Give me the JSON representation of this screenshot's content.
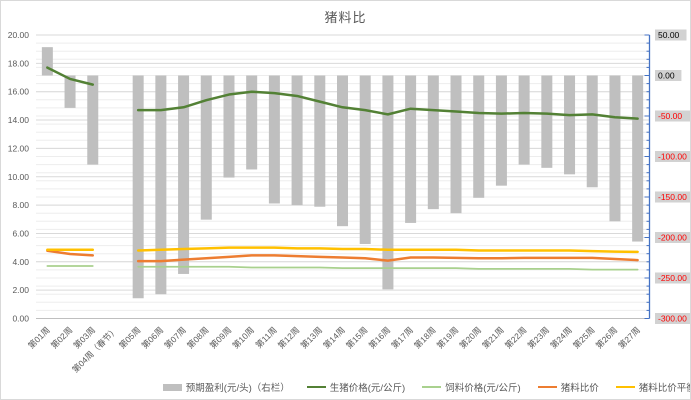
{
  "chart_data": {
    "type": "combo",
    "title": "猪料比",
    "grid": true,
    "legend_position": "bottom",
    "categories": [
      "第01周",
      "第02周",
      "第03周",
      "第04周（春节）",
      "第05周",
      "第06周",
      "第07周",
      "第08周",
      "第09周",
      "第10周",
      "第11周",
      "第12周",
      "第13周",
      "第14周",
      "第15周",
      "第16周",
      "第17周",
      "第18周",
      "第19周",
      "第20周",
      "第21周",
      "第22周",
      "第23周",
      "第24周",
      "第25周",
      "第26周",
      "第27周"
    ],
    "series": [
      {
        "key": "profit",
        "name": "预期盈利(元/头)（右栏）",
        "type": "bar",
        "axis": "right",
        "color": "#bfbfbf",
        "values": [
          35,
          -40,
          -110,
          null,
          -275,
          -270,
          -245,
          -178,
          -126,
          -116,
          -158,
          -160,
          -162,
          -186,
          -208,
          -264,
          -182,
          -165,
          -170,
          -151,
          -136,
          -110,
          -114,
          -122,
          -138,
          -180,
          -205
        ]
      },
      {
        "key": "pig-price",
        "name": "生猪价格(元/公斤)",
        "type": "line",
        "axis": "left",
        "color": "#538135",
        "width": 2.5,
        "values": [
          17.7,
          16.9,
          16.5,
          null,
          14.7,
          14.7,
          14.9,
          15.4,
          15.8,
          16.0,
          15.9,
          15.7,
          15.3,
          14.9,
          14.7,
          14.4,
          14.8,
          14.7,
          14.6,
          14.5,
          14.45,
          14.5,
          14.45,
          14.35,
          14.4,
          14.2,
          14.1
        ]
      },
      {
        "key": "feed-price",
        "name": "饲料价格(元/公斤)",
        "type": "line",
        "axis": "left",
        "color": "#a9d18e",
        "width": 1.75,
        "values": [
          3.7,
          3.7,
          3.7,
          null,
          3.65,
          3.65,
          3.65,
          3.65,
          3.65,
          3.6,
          3.6,
          3.6,
          3.6,
          3.55,
          3.55,
          3.55,
          3.55,
          3.55,
          3.55,
          3.5,
          3.5,
          3.5,
          3.5,
          3.5,
          3.45,
          3.45,
          3.45
        ]
      },
      {
        "key": "ratio",
        "name": "猪料比价",
        "type": "line",
        "axis": "left",
        "color": "#ed7d31",
        "width": 2.5,
        "values": [
          4.78,
          4.55,
          4.45,
          null,
          4.05,
          4.05,
          4.15,
          4.25,
          4.35,
          4.45,
          4.45,
          4.4,
          4.35,
          4.3,
          4.25,
          4.08,
          4.3,
          4.3,
          4.28,
          4.25,
          4.25,
          4.28,
          4.28,
          4.28,
          4.28,
          4.2,
          4.12
        ]
      },
      {
        "key": "balance",
        "name": "猪料比价平衡点",
        "type": "line",
        "axis": "left",
        "color": "#ffc000",
        "width": 2.5,
        "values": [
          4.85,
          4.85,
          4.85,
          null,
          4.8,
          4.85,
          4.9,
          4.95,
          5.0,
          5.0,
          5.0,
          4.95,
          4.95,
          4.9,
          4.9,
          4.85,
          4.85,
          4.85,
          4.85,
          4.8,
          4.8,
          4.8,
          4.8,
          4.8,
          4.75,
          4.72,
          4.7
        ]
      }
    ],
    "left_axis": {
      "min": 0,
      "max": 20,
      "step": 2,
      "tick_labels": [
        "20.00",
        "18.00",
        "16.00",
        "14.00",
        "12.00",
        "10.00",
        "8.00",
        "6.00",
        "4.00",
        "2.00",
        "0.00"
      ],
      "label_color": "#595959"
    },
    "right_axis": {
      "min": -300,
      "max": 50,
      "step": 50,
      "minor_step": 10,
      "tick_labels": [
        "50.00",
        "0.00",
        "-50.00",
        "-100.00",
        "-150.00",
        "-200.00",
        "-250.00",
        "-300.00"
      ],
      "selected": true,
      "line_color": "#4472c4",
      "positive_label_color": "#000000",
      "negative_label_color": "#ff0000",
      "label_bg": "#d2d2d2"
    },
    "colors": {
      "gridline_major": "#d9d9d9",
      "gridline_minor": "#ededed",
      "baseline": "#bfbfbf",
      "axis_text": "#595959"
    }
  }
}
